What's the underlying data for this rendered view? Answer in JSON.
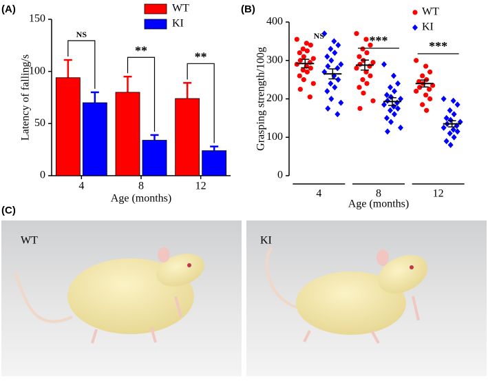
{
  "chart_data": [
    {
      "type": "bar",
      "panel": "(A)",
      "ylabel": "Latency of falling/s",
      "xlabel": "Age (months)",
      "categories": [
        "4",
        "8",
        "12"
      ],
      "series": [
        {
          "name": "WT",
          "color": "#ff0000",
          "values": [
            94,
            80,
            74
          ],
          "errors": [
            17,
            15,
            15
          ]
        },
        {
          "name": "KI",
          "color": "#0000ff",
          "values": [
            70,
            34,
            24
          ],
          "errors": [
            10,
            5,
            4
          ]
        }
      ],
      "annotations": [
        "NS",
        "**",
        "**"
      ],
      "ylim": [
        0,
        150
      ],
      "yticks": [
        0,
        50,
        100,
        150
      ]
    },
    {
      "type": "dot",
      "panel": "(B)",
      "ylabel": "Grasping strength/100g",
      "xlabel": "Age (months)",
      "categories": [
        "4",
        "8",
        "12"
      ],
      "series": [
        {
          "name": "WT",
          "color": "#ff0000",
          "marker": "circle",
          "groups": [
            [
              355,
              345,
              340,
              330,
              325,
              320,
              310,
              305,
              300,
              295,
              290,
              285,
              280,
              275,
              270,
              260,
              250,
              240,
              225,
              205
            ],
            [
              370,
              355,
              340,
              330,
              320,
              310,
              300,
              295,
              290,
              285,
              280,
              270,
              260,
              250,
              240,
              230,
              215,
              195,
              175
            ],
            [
              300,
              285,
              270,
              260,
              250,
              245,
              240,
              235,
              230,
              225,
              220,
              210,
              200,
              185,
              170
            ]
          ],
          "means": [
            292,
            288,
            240
          ],
          "sem": [
            11,
            13,
            9
          ]
        },
        {
          "name": "KI",
          "color": "#0000ff",
          "marker": "diamond",
          "groups": [
            [
              370,
              350,
              340,
              330,
              320,
              310,
              300,
              290,
              285,
              280,
              270,
              260,
              250,
              240,
              230,
              220,
              200,
              190,
              175,
              160
            ],
            [
              290,
              260,
              240,
              230,
              220,
              210,
              205,
              200,
              195,
              190,
              185,
              180,
              175,
              170,
              160,
              150,
              140,
              125,
              115
            ],
            [
              200,
              195,
              185,
              170,
              160,
              150,
              145,
              140,
              135,
              130,
              125,
              120,
              115,
              110,
              100,
              90,
              80
            ]
          ],
          "means": [
            265,
            193,
            135
          ],
          "sem": [
            13,
            10,
            8
          ]
        }
      ],
      "annotations": [
        "NS",
        "***",
        "***"
      ],
      "ylim": [
        0,
        400
      ],
      "yticks": [
        0,
        100,
        200,
        300,
        400
      ]
    }
  ],
  "panel_c": {
    "label": "(C)",
    "photos": [
      {
        "label": "WT"
      },
      {
        "label": "KI"
      }
    ]
  }
}
